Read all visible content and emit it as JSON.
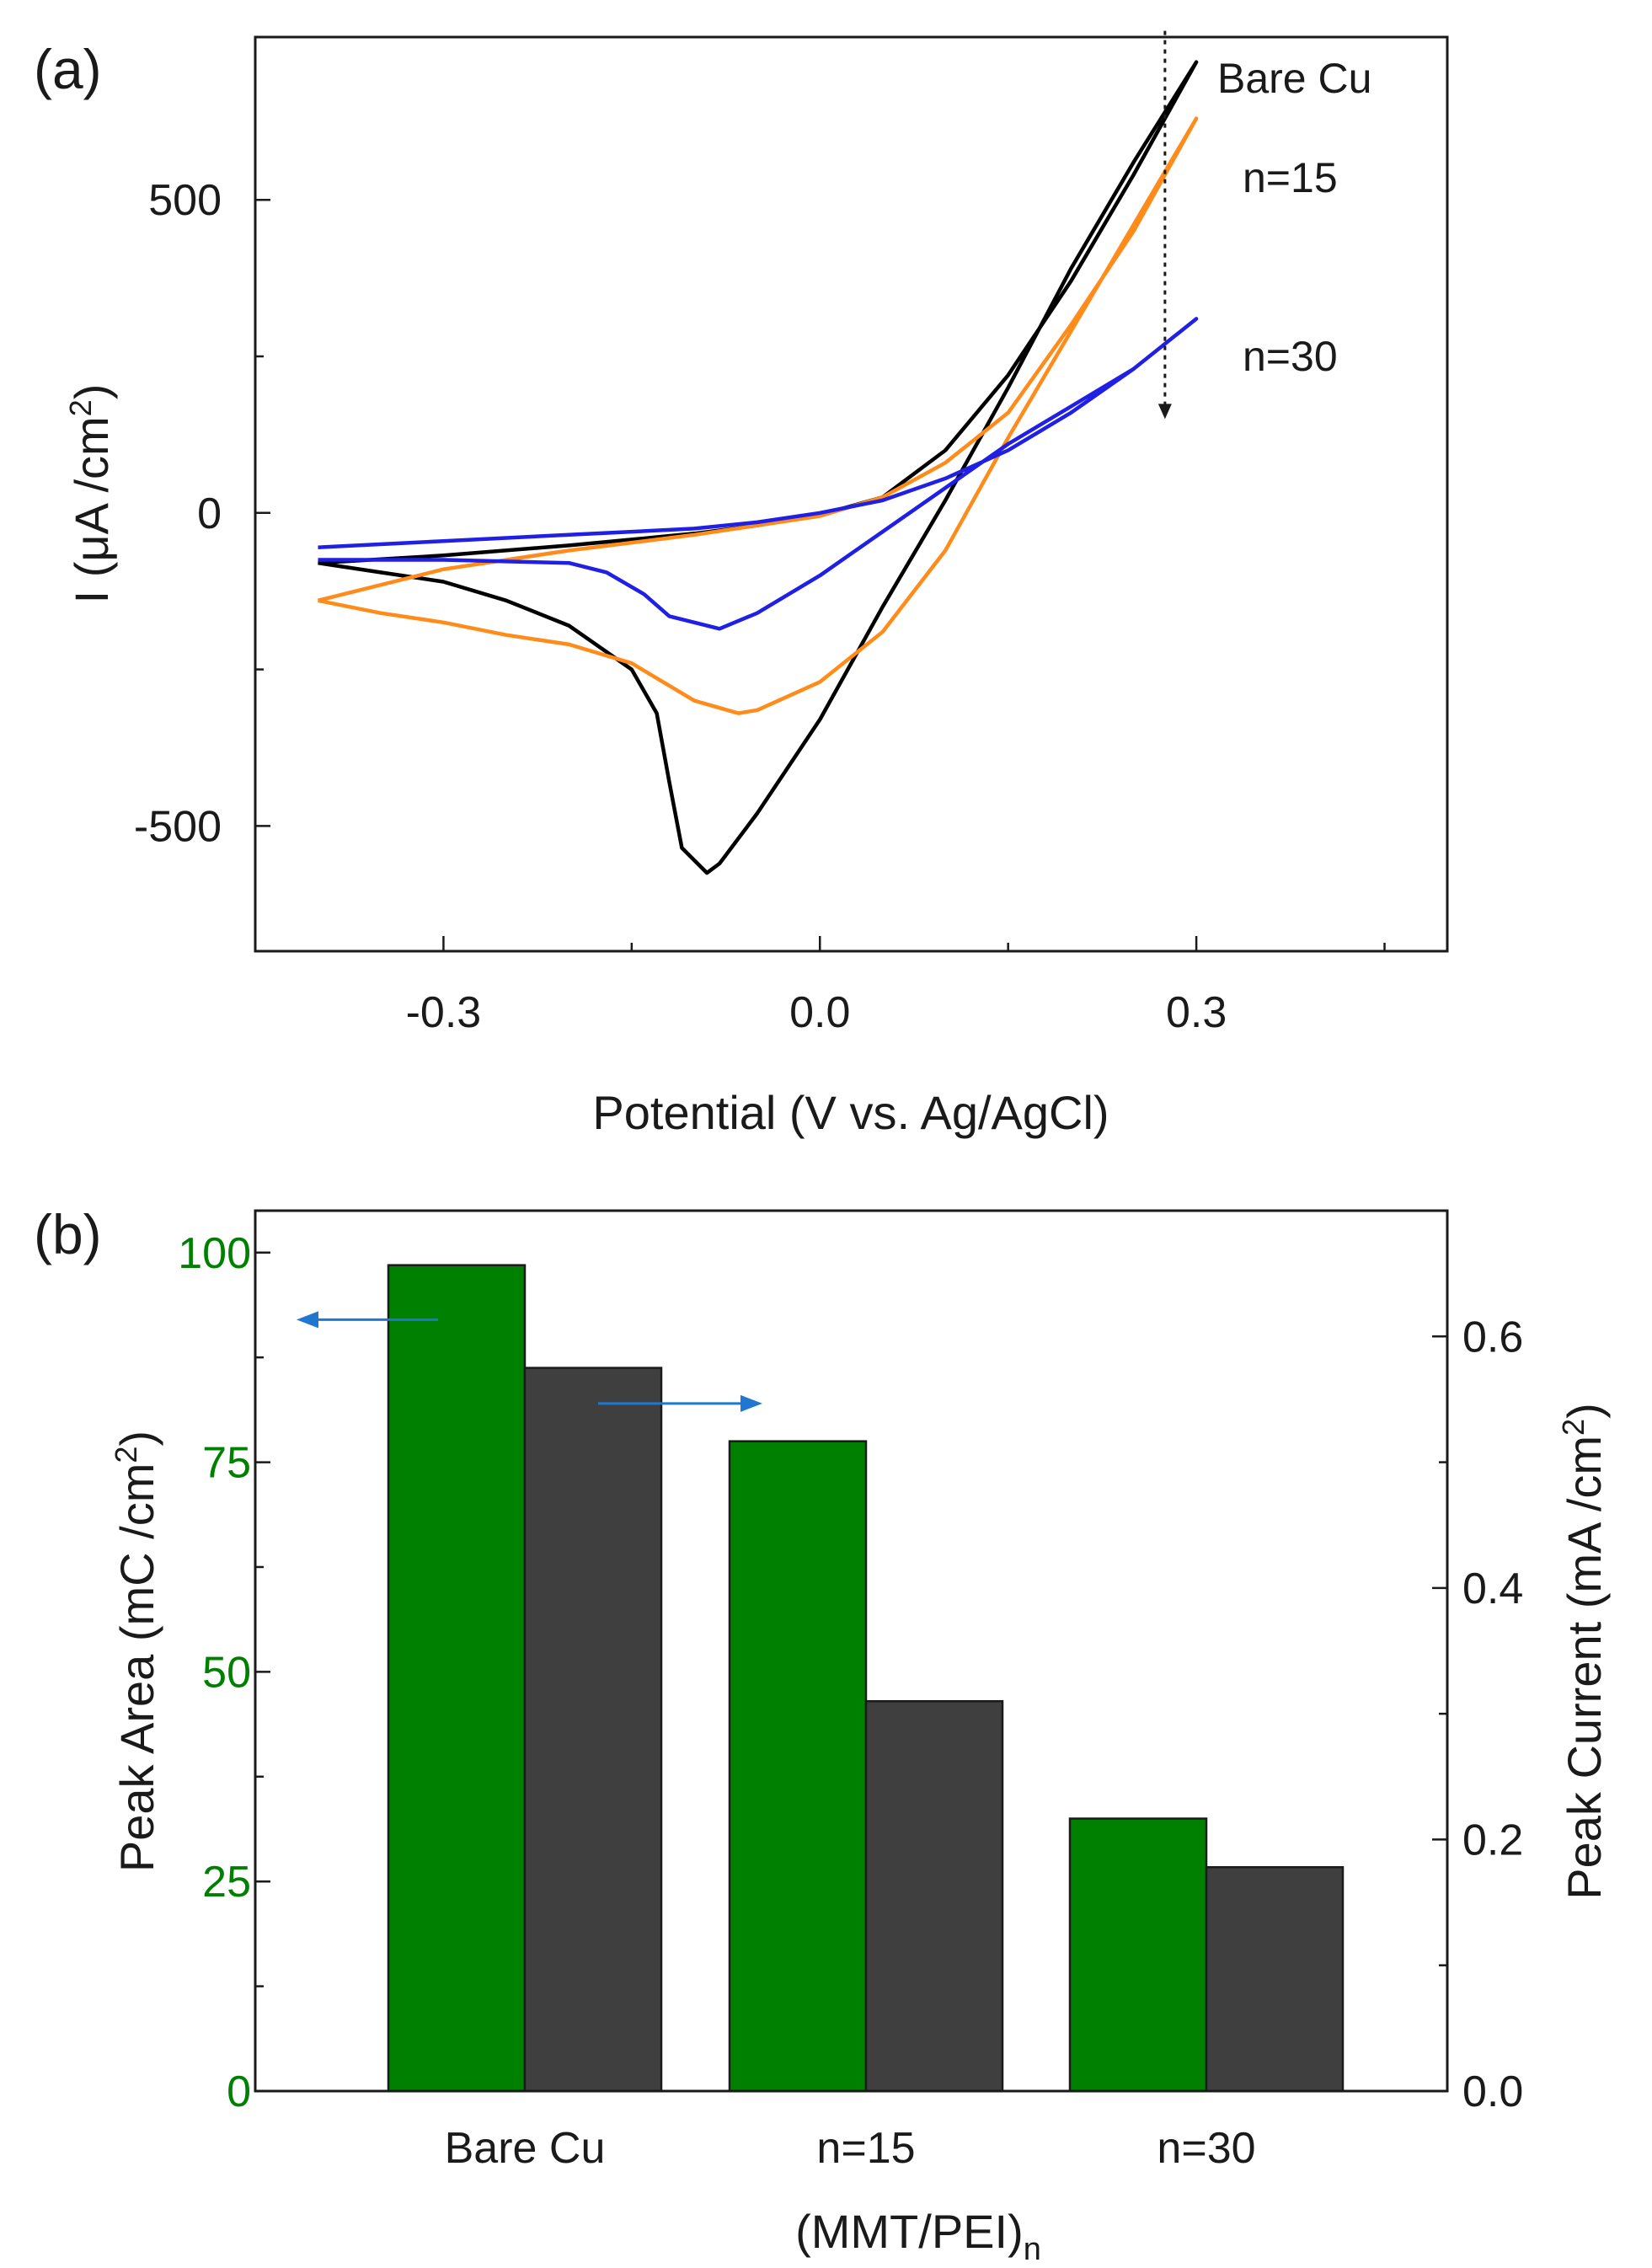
{
  "chart_data": [
    {
      "type": "line",
      "panel_label": "(a)",
      "xlabel": "Potential (V vs. Ag/AgCl)",
      "ylabel": "I (μA /cm²)",
      "ylabel_parts": {
        "base": "I (μA /cm",
        "sup": "2",
        "close": ")"
      },
      "xlim": [
        -0.45,
        0.5
      ],
      "ylim": [
        -700,
        760
      ],
      "x_ticks": [
        -0.3,
        0.0,
        0.3
      ],
      "x_tick_labels": [
        "-0.3",
        "0.0",
        "0.3"
      ],
      "y_ticks": [
        -500,
        0,
        500
      ],
      "y_tick_labels": [
        "-500",
        "0",
        "500"
      ],
      "annotation": "dotted arrow pointing down at 0.28 V from ~770 to ~150 μA/cm²",
      "arrow": {
        "x": 0.275,
        "y_from": 770,
        "y_to": 150
      },
      "series": [
        {
          "name": "Bare Cu",
          "label": "Bare Cu",
          "color": "#000000",
          "forward": [
            [
              -0.4,
              -80
            ],
            [
              -0.3,
              -68
            ],
            [
              -0.2,
              -52
            ],
            [
              -0.1,
              -33
            ],
            [
              -0.05,
              -20
            ],
            [
              0.0,
              -3
            ],
            [
              0.05,
              25
            ],
            [
              0.1,
              100
            ],
            [
              0.15,
              220
            ],
            [
              0.2,
              370
            ],
            [
              0.25,
              540
            ],
            [
              0.3,
              720
            ]
          ],
          "reverse": [
            [
              0.3,
              720
            ],
            [
              0.25,
              560
            ],
            [
              0.2,
              390
            ],
            [
              0.15,
              200
            ],
            [
              0.1,
              20
            ],
            [
              0.05,
              -150
            ],
            [
              0.0,
              -330
            ],
            [
              -0.05,
              -480
            ],
            [
              -0.08,
              -560
            ],
            [
              -0.09,
              -575
            ],
            [
              -0.11,
              -535
            ],
            [
              -0.12,
              -430
            ],
            [
              -0.13,
              -320
            ],
            [
              -0.15,
              -250
            ],
            [
              -0.2,
              -180
            ],
            [
              -0.25,
              -140
            ],
            [
              -0.3,
              -110
            ],
            [
              -0.35,
              -95
            ],
            [
              -0.4,
              -80
            ]
          ]
        },
        {
          "name": "n=15",
          "label": "n=15",
          "color": "#FF8C1A",
          "forward": [
            [
              -0.4,
              -140
            ],
            [
              -0.3,
              -90
            ],
            [
              -0.2,
              -60
            ],
            [
              -0.1,
              -35
            ],
            [
              -0.05,
              -20
            ],
            [
              0.0,
              -5
            ],
            [
              0.05,
              25
            ],
            [
              0.1,
              80
            ],
            [
              0.15,
              160
            ],
            [
              0.2,
              300
            ],
            [
              0.25,
              450
            ],
            [
              0.3,
              630
            ]
          ],
          "reverse": [
            [
              0.3,
              630
            ],
            [
              0.25,
              460
            ],
            [
              0.2,
              290
            ],
            [
              0.15,
              120
            ],
            [
              0.1,
              -60
            ],
            [
              0.05,
              -190
            ],
            [
              0.0,
              -270
            ],
            [
              -0.05,
              -315
            ],
            [
              -0.065,
              -320
            ],
            [
              -0.1,
              -300
            ],
            [
              -0.15,
              -240
            ],
            [
              -0.2,
              -210
            ],
            [
              -0.25,
              -195
            ],
            [
              -0.3,
              -175
            ],
            [
              -0.35,
              -160
            ],
            [
              -0.4,
              -140
            ]
          ]
        },
        {
          "name": "n=30",
          "label": "n=30",
          "color": "#1F1FE6",
          "forward": [
            [
              -0.4,
              -55
            ],
            [
              -0.3,
              -45
            ],
            [
              -0.2,
              -35
            ],
            [
              -0.1,
              -25
            ],
            [
              -0.05,
              -15
            ],
            [
              0.0,
              0
            ],
            [
              0.05,
              20
            ],
            [
              0.1,
              55
            ],
            [
              0.15,
              100
            ],
            [
              0.2,
              160
            ],
            [
              0.25,
              230
            ],
            [
              0.3,
              310
            ]
          ],
          "reverse": [
            [
              0.3,
              310
            ],
            [
              0.25,
              230
            ],
            [
              0.2,
              170
            ],
            [
              0.15,
              110
            ],
            [
              0.1,
              40
            ],
            [
              0.05,
              -30
            ],
            [
              0.0,
              -100
            ],
            [
              -0.05,
              -160
            ],
            [
              -0.08,
              -185
            ],
            [
              -0.12,
              -165
            ],
            [
              -0.14,
              -130
            ],
            [
              -0.17,
              -95
            ],
            [
              -0.2,
              -80
            ],
            [
              -0.3,
              -75
            ],
            [
              -0.4,
              -75
            ]
          ]
        }
      ]
    },
    {
      "type": "bar",
      "panel_label": "(b)",
      "categories": [
        "Bare Cu",
        "n=15",
        "n=30"
      ],
      "xlabel_parts": {
        "base": "(MMT/PEI)",
        "sub": "n"
      },
      "xlabel": "(MMT/PEI)n",
      "ylabel": "Peak Area (mC /cm²)",
      "ylabel_parts": {
        "base": "Peak Area (mC /cm",
        "sup": "2",
        "close": ")"
      },
      "y2label": "Peak Current (mA /cm²)",
      "y2label_parts": {
        "base": "Peak Current (mA /cm",
        "sup": "2",
        "close": ")"
      },
      "ylim": [
        0,
        105
      ],
      "y2lim": [
        0,
        0.7
      ],
      "y_ticks": [
        0,
        25,
        50,
        75,
        100
      ],
      "y_tick_labels": [
        "0",
        "25",
        "50",
        "75",
        "100"
      ],
      "y2_ticks": [
        0.0,
        0.2,
        0.4,
        0.6
      ],
      "y2_tick_labels": [
        "0.0",
        "0.2",
        "0.4",
        "0.6"
      ],
      "series": [
        {
          "name": "Peak Area",
          "axis": "left",
          "color": "#008000",
          "values": [
            98.5,
            77.5,
            32.5
          ]
        },
        {
          "name": "Peak Current",
          "axis": "right",
          "color": "#3F3F3F",
          "values": [
            0.575,
            0.31,
            0.178
          ]
        }
      ],
      "annotations": [
        {
          "type": "arrow",
          "direction": "left",
          "meaning": "Peak Area uses left axis",
          "color": "#1F77D0",
          "y": 92
        },
        {
          "type": "arrow",
          "direction": "right",
          "meaning": "Peak Current uses right axis",
          "color": "#1F77D0",
          "y": 82
        }
      ]
    }
  ]
}
